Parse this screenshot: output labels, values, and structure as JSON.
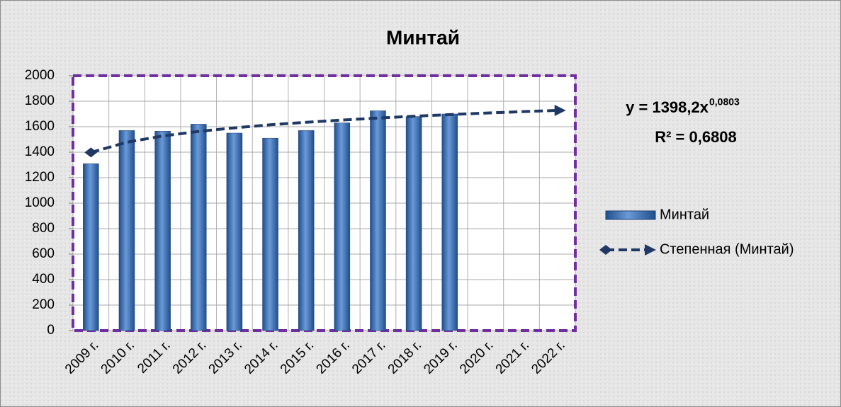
{
  "chart_data": {
    "type": "bar",
    "title": "Минтай",
    "categories": [
      "2009 г.",
      "2010 г.",
      "2011 г.",
      "2012 г.",
      "2013 г.",
      "2014 г.",
      "2015 г.",
      "2016 г.",
      "2017 г.",
      "2018 г.",
      "2019 г.",
      "2020 г.",
      "2021 г.",
      "2022 г."
    ],
    "series": [
      {
        "name": "Минтай",
        "type": "bar",
        "color": "#3f6fb0",
        "values": [
          1310,
          1570,
          1565,
          1620,
          1550,
          1510,
          1570,
          1630,
          1725,
          1680,
          1700,
          null,
          null,
          null
        ]
      },
      {
        "name": "Степенная (Минтай)",
        "type": "line",
        "color": "#1f3864",
        "values": [
          1398,
          1478,
          1527,
          1563,
          1591,
          1615,
          1635,
          1652,
          1668,
          1682,
          1695,
          1707,
          1718,
          1728
        ]
      }
    ],
    "annotations": {
      "equation": "y = 1398,2x",
      "equation_exponent": "0,0803",
      "r_squared": "R² = 0,6808"
    },
    "ylim": [
      0,
      2000
    ],
    "yticks": [
      0,
      200,
      400,
      600,
      800,
      1000,
      1200,
      1400,
      1600,
      1800,
      2000
    ],
    "grid": true,
    "legend": "right"
  }
}
